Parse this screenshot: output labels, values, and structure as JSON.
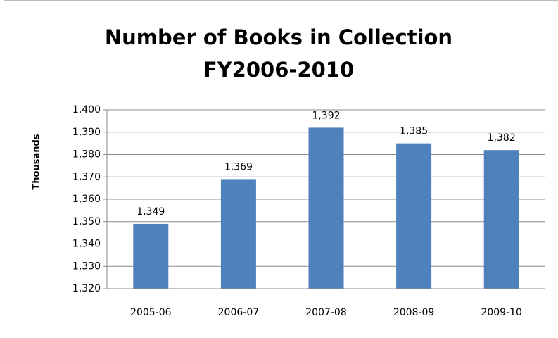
{
  "chart_data": {
    "type": "bar",
    "title": [
      "Number of Books in Collection",
      "FY2006-2010"
    ],
    "y_label": "Thousands",
    "categories": [
      "2005-06",
      "2006-07",
      "2007-08",
      "2008-09",
      "2009-10"
    ],
    "values": [
      1349,
      1369,
      1392,
      1385,
      1382
    ],
    "value_labels": [
      "1,349",
      "1,369",
      "1,392",
      "1,385",
      "1,382"
    ],
    "color": "#4f81bd",
    "ylim": [
      1320,
      1400
    ],
    "yticks": [
      {
        "value": 1320,
        "label": "1,320"
      },
      {
        "value": 1330,
        "label": "1,330"
      },
      {
        "value": 1340,
        "label": "1,340"
      },
      {
        "value": 1350,
        "label": "1,350"
      },
      {
        "value": 1360,
        "label": "1,360"
      },
      {
        "value": 1370,
        "label": "1,370"
      },
      {
        "value": 1380,
        "label": "1,380"
      },
      {
        "value": 1390,
        "label": "1,390"
      },
      {
        "value": 1400,
        "label": "1,400"
      }
    ],
    "grid": true
  }
}
